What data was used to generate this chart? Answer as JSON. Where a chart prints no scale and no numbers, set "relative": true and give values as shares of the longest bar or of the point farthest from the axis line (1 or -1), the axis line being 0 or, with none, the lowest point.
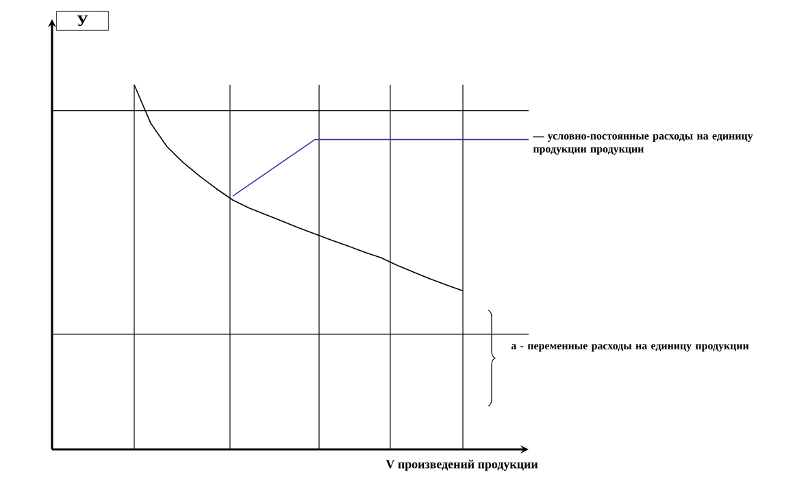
{
  "chart_data": {
    "type": "line",
    "relative": true,
    "ylabel": "У",
    "xlabel": "V произведений продукции",
    "marker": "none",
    "line_style": "solid",
    "categories": [
      null,
      null,
      null,
      null,
      null,
      null,
      null,
      null,
      null,
      null,
      null,
      null,
      null,
      null,
      null,
      null,
      null,
      null,
      null,
      null,
      null,
      null,
      null,
      null,
      null
    ],
    "series": [
      {
        "color": "#000000",
        "values": [
          1.0,
          0.895,
          0.83,
          0.786,
          0.749,
          0.715,
          0.684,
          0.662,
          0.644,
          0.626,
          0.608,
          0.591,
          0.574,
          0.558,
          0.541,
          0.526,
          0.505,
          0.486,
          0.468,
          0.451,
          0.435,
          null,
          null,
          null,
          null
        ]
      },
      {
        "color": "#3333aa",
        "values": [
          null,
          null,
          null,
          null,
          null,
          null,
          0.695,
          0.726,
          0.757,
          0.788,
          0.819,
          0.85,
          0.85,
          0.85,
          0.85,
          0.85,
          0.85,
          0.85,
          0.85,
          0.85,
          0.85,
          0.85,
          0.85,
          0.85,
          0.85
        ]
      }
    ],
    "ref_lines": [
      {
        "axis": "y",
        "value": 0.929
      },
      {
        "axis": "y",
        "value": 0.316
      }
    ],
    "annotations": [
      "— условно-постоянные расходы на единицу продукции продукции",
      "а - переменные расходы на единицу продукции"
    ]
  }
}
